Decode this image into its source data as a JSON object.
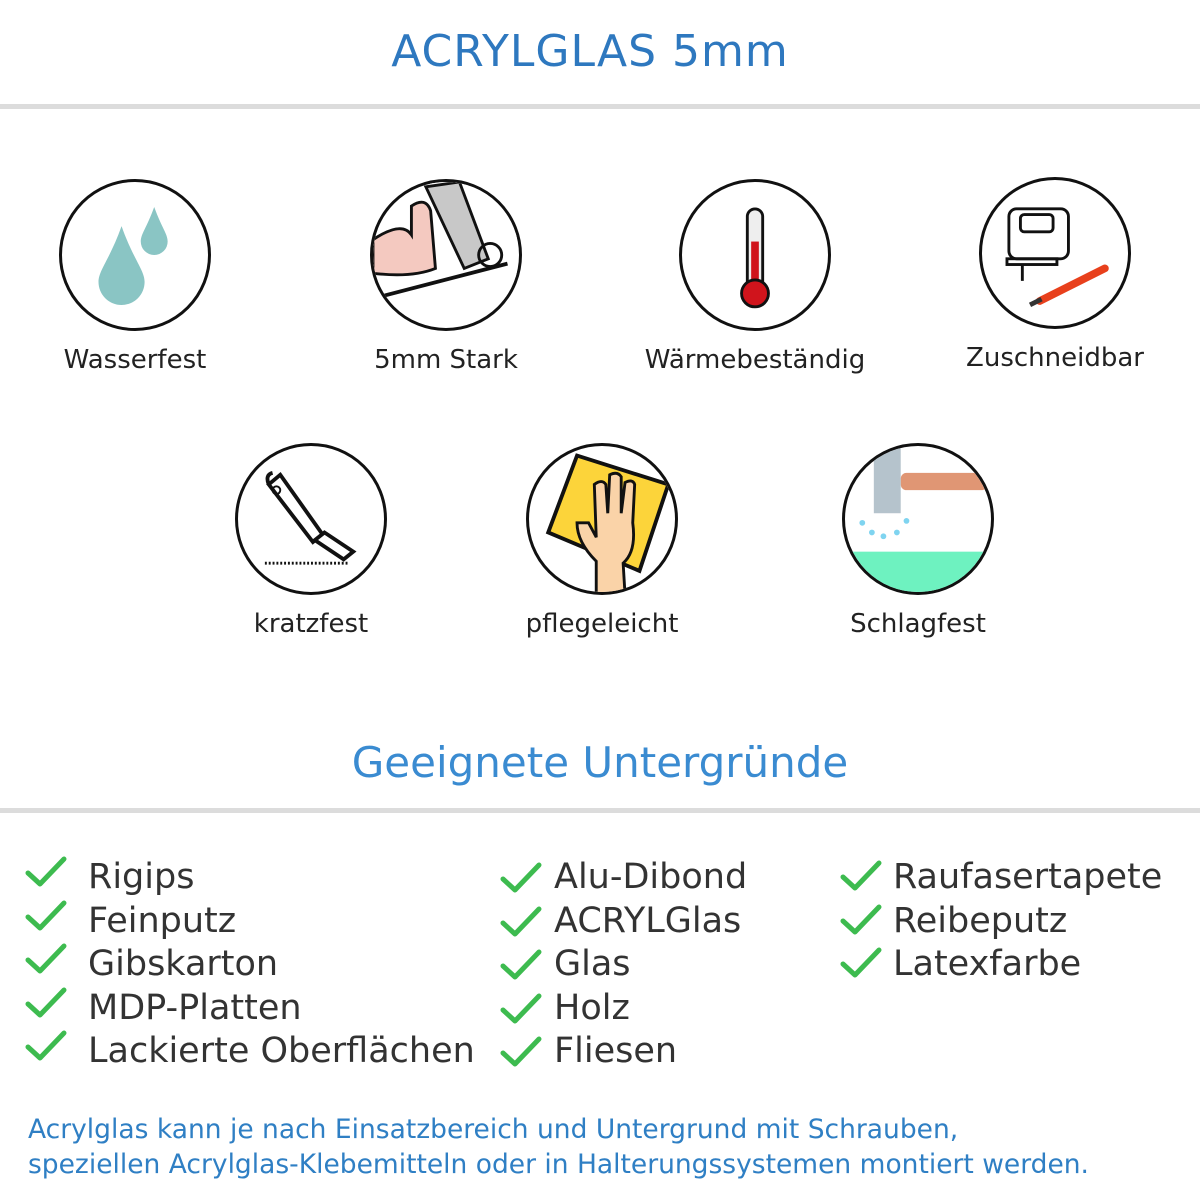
{
  "header": {
    "title": "ACRYLGLAS 5mm"
  },
  "features": [
    {
      "label": "Wasserfest",
      "icon": "water-drops-icon"
    },
    {
      "label": "5mm Stark",
      "icon": "strong-arm-icon"
    },
    {
      "label": "Wärmebeständig",
      "icon": "thermometer-icon"
    },
    {
      "label": "Zuschneidbar",
      "icon": "jigsaw-cutter-icon"
    },
    {
      "label": "kratzfest",
      "icon": "cutter-knife-icon"
    },
    {
      "label": "pflegeleicht",
      "icon": "hand-cloth-icon"
    },
    {
      "label": "Schlagfest",
      "icon": "hammer-icon"
    }
  ],
  "surfaces": {
    "title": "Geeignete Untergründe",
    "columns": [
      [
        "Rigips",
        "Feinputz",
        "Gibskarton",
        "MDP-Platten",
        "Lackierte Oberflächen"
      ],
      [
        "Alu-Dibond",
        "ACRYLGlas",
        "Glas",
        "Holz",
        "Fliesen"
      ],
      [
        "Raufasertapete",
        "Reibeputz",
        "Latexfarbe"
      ]
    ],
    "check_color": "#3dbb4f"
  },
  "footer": {
    "line1": "Acrylglas kann je nach Einsatzbereich und Untergrund mit Schrauben,",
    "line2": "speziellen Acrylglas-Klebemitteln oder in Halterungssystemen montiert werden."
  },
  "colors": {
    "title": "#2e78bf",
    "subtitle": "#3a8bd1",
    "footer": "#2f7fc4"
  }
}
